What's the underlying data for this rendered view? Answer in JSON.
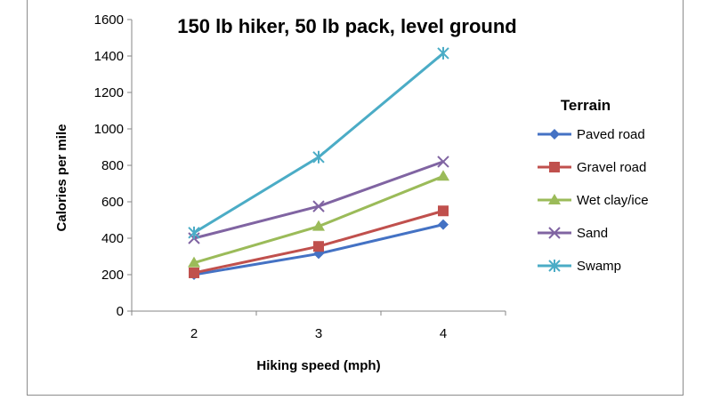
{
  "chart_data": {
    "type": "line",
    "title": "150 lb hiker, 50 lb pack, level ground",
    "xlabel": "Hiking speed (mph)",
    "ylabel": "Calories per mile",
    "x": [
      2,
      3,
      4
    ],
    "ylim": [
      0,
      1600
    ],
    "yticks": [
      0,
      200,
      400,
      600,
      800,
      1000,
      1200,
      1400,
      1600
    ],
    "grid": false,
    "legend": {
      "title": "Terrain",
      "placement": "right"
    },
    "series": [
      {
        "name": "Paved road",
        "values": [
          200,
          315,
          475
        ],
        "color": "#4472C4",
        "marker": "diamond"
      },
      {
        "name": "Gravel road",
        "values": [
          210,
          355,
          550
        ],
        "color": "#C0504D",
        "marker": "square"
      },
      {
        "name": "Wet clay/ice",
        "values": [
          265,
          465,
          740
        ],
        "color": "#9BBB59",
        "marker": "triangle"
      },
      {
        "name": "Sand",
        "values": [
          400,
          575,
          820
        ],
        "color": "#8064A2",
        "marker": "x"
      },
      {
        "name": "Swamp",
        "values": [
          430,
          845,
          1415
        ],
        "color": "#4BACC6",
        "marker": "star"
      }
    ]
  }
}
